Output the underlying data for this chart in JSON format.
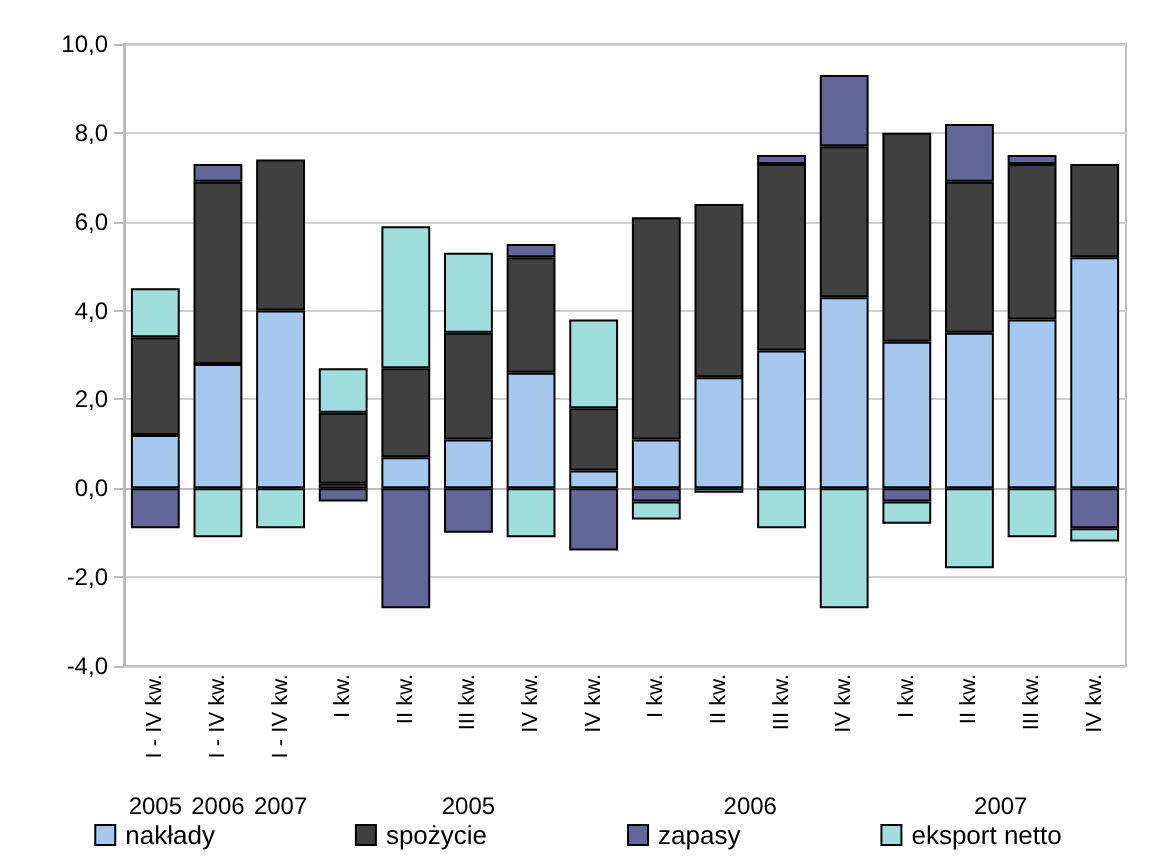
{
  "chart_data": {
    "type": "bar",
    "stacked": true,
    "categories": [
      "I - IV kw.",
      "I - IV kw.",
      "I - IV kw.",
      "I kw.",
      "II kw.",
      "III kw.",
      "IV kw.",
      "IV kw.",
      "I kw.",
      "II kw.",
      "III kw.",
      "IV kw.",
      "I kw.",
      "II kw.",
      "III kw.",
      "IV kw."
    ],
    "series": [
      {
        "name": "nakłady",
        "color": "#a6c8ee",
        "values": [
          1.2,
          2.8,
          4.0,
          0.1,
          0.7,
          1.1,
          2.6,
          0.4,
          1.1,
          2.5,
          3.1,
          4.3,
          3.3,
          3.5,
          3.8,
          5.2
        ]
      },
      {
        "name": "spożycie",
        "color": "#404040",
        "values": [
          2.2,
          4.1,
          3.4,
          1.6,
          2.0,
          2.4,
          2.6,
          1.4,
          5.0,
          3.9,
          4.2,
          3.4,
          4.7,
          3.4,
          3.5,
          2.1
        ]
      },
      {
        "name": "zapasy",
        "color": "#626699",
        "values": [
          -0.9,
          0.4,
          null,
          -0.3,
          -2.7,
          -1.0,
          0.3,
          -1.4,
          -0.3,
          null,
          0.2,
          1.6,
          -0.3,
          1.3,
          0.2,
          -0.9
        ]
      },
      {
        "name": "eksport netto",
        "color": "#a0dede",
        "values": [
          1.1,
          -1.1,
          -0.9,
          1.0,
          3.2,
          1.8,
          -1.1,
          2.0,
          -0.4,
          -0.1,
          -0.9,
          -2.7,
          -0.5,
          -1.8,
          -1.1,
          -0.3
        ]
      }
    ],
    "ylim": [
      -4,
      10
    ],
    "yticks": [
      {
        "value": -4,
        "label": "-4,0"
      },
      {
        "value": -2,
        "label": "-2,0"
      },
      {
        "value": 0,
        "label": "0,0"
      },
      {
        "value": 2,
        "label": "2,0"
      },
      {
        "value": 4,
        "label": "4,0"
      },
      {
        "value": 6,
        "label": "6,0"
      },
      {
        "value": 8,
        "label": "8,0"
      },
      {
        "value": 10,
        "label": "10,0"
      }
    ],
    "annotations": [
      "2005",
      "2006",
      "2007",
      "2005",
      "2006",
      "2007"
    ],
    "grid": "y",
    "legend": "bottom"
  }
}
